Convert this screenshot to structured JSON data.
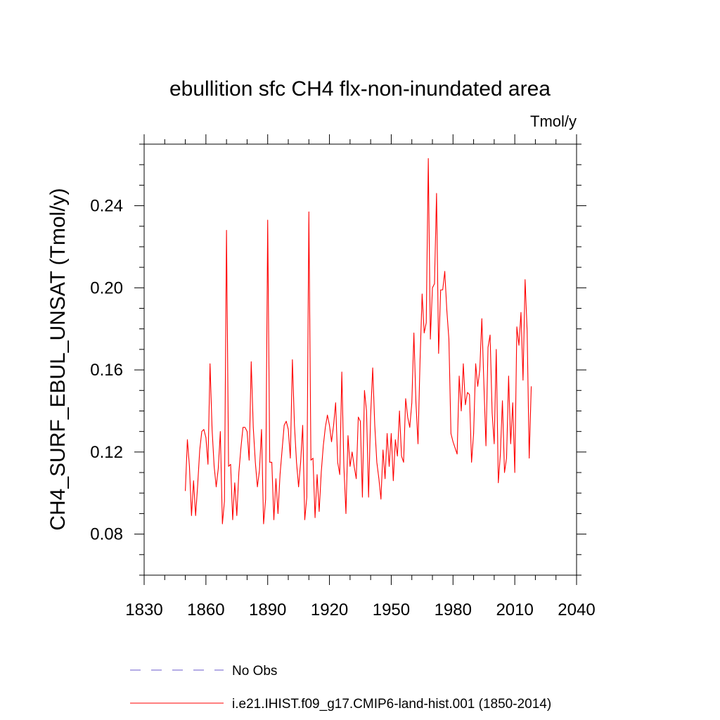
{
  "chart_data": {
    "type": "line",
    "title": "ebullition sfc CH4 flx-non-inundated area",
    "units_label": "Tmol/y",
    "ylabel": "CH4_SURF_EBUL_UNSAT  (Tmol/y)",
    "xlabel": "",
    "xlim": [
      1830,
      2040
    ],
    "ylim": [
      0.06,
      0.27
    ],
    "x_ticks": [
      1830,
      1860,
      1890,
      1920,
      1950,
      1980,
      2010,
      2040
    ],
    "x_tick_labels": [
      "1830",
      "1860",
      "1890",
      "1920",
      "1950",
      "1980",
      "2010",
      "2040"
    ],
    "y_ticks": [
      0.08,
      0.12,
      0.16,
      0.2,
      0.24
    ],
    "y_tick_labels": [
      "0.08",
      "0.12",
      "0.16",
      "0.20",
      "0.24"
    ],
    "grid": false,
    "legend_position": "bottom",
    "legend": [
      {
        "label": "No Obs",
        "color": "#6a5acd",
        "style": "dashed"
      },
      {
        "label": "i.e21.IHIST.f09_g17.CMIP6-land-hist.001 (1850-2014)",
        "color": "#ff0000",
        "style": "solid"
      }
    ],
    "series": [
      {
        "name": "i.e21.IHIST.f09_g17.CMIP6-land-hist.001 (1850-2014)",
        "color": "#ff0000",
        "x_start": 1850,
        "x_step": 1,
        "values": [
          0.101,
          0.126,
          0.113,
          0.089,
          0.106,
          0.089,
          0.104,
          0.121,
          0.13,
          0.131,
          0.127,
          0.114,
          0.163,
          0.131,
          0.113,
          0.103,
          0.112,
          0.13,
          0.085,
          0.096,
          0.228,
          0.113,
          0.114,
          0.087,
          0.105,
          0.089,
          0.11,
          0.122,
          0.132,
          0.132,
          0.13,
          0.116,
          0.164,
          0.132,
          0.115,
          0.103,
          0.111,
          0.131,
          0.085,
          0.097,
          0.233,
          0.115,
          0.115,
          0.087,
          0.107,
          0.09,
          0.109,
          0.121,
          0.133,
          0.135,
          0.131,
          0.117,
          0.165,
          0.133,
          0.115,
          0.103,
          0.115,
          0.133,
          0.087,
          0.098,
          0.237,
          0.116,
          0.117,
          0.088,
          0.109,
          0.091,
          0.11,
          0.123,
          0.132,
          0.138,
          0.133,
          0.125,
          0.133,
          0.144,
          0.115,
          0.109,
          0.159,
          0.113,
          0.09,
          0.128,
          0.113,
          0.12,
          0.113,
          0.107,
          0.137,
          0.135,
          0.098,
          0.15,
          0.14,
          0.098,
          0.138,
          0.161,
          0.133,
          0.115,
          0.107,
          0.097,
          0.121,
          0.107,
          0.129,
          0.113,
          0.129,
          0.106,
          0.126,
          0.118,
          0.14,
          0.118,
          0.115,
          0.146,
          0.137,
          0.132,
          0.144,
          0.178,
          0.144,
          0.124,
          0.165,
          0.197,
          0.178,
          0.183,
          0.263,
          0.175,
          0.2,
          0.202,
          0.246,
          0.168,
          0.199,
          0.199,
          0.208,
          0.189,
          0.175,
          0.129,
          0.125,
          0.122,
          0.119,
          0.157,
          0.14,
          0.163,
          0.143,
          0.149,
          0.148,
          0.115,
          0.129,
          0.163,
          0.152,
          0.16,
          0.185,
          0.153,
          0.123,
          0.171,
          0.177,
          0.139,
          0.124,
          0.17,
          0.105,
          0.119,
          0.145,
          0.11,
          0.117,
          0.157,
          0.124,
          0.144,
          0.11,
          0.181,
          0.172,
          0.188,
          0.155,
          0.204,
          0.179,
          0.117,
          0.152
        ]
      }
    ]
  }
}
